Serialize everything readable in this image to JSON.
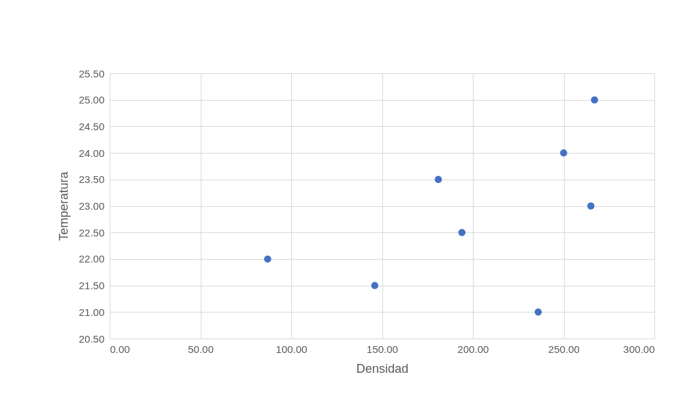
{
  "chart_data": {
    "type": "scatter",
    "xlabel": "Densidad",
    "ylabel": "Temperatura",
    "x": [
      267,
      250,
      181,
      265,
      194,
      87,
      146,
      236
    ],
    "series": [
      {
        "color": "#4472c4",
        "values": [
          25,
          24,
          23.5,
          23,
          22.5,
          22,
          21.5,
          21
        ]
      }
    ],
    "xlim": [
      0,
      300
    ],
    "xticks": [
      {
        "value": 0,
        "label": "0.00"
      },
      {
        "value": 50,
        "label": "50.00"
      },
      {
        "value": 100,
        "label": "100.00"
      },
      {
        "value": 150,
        "label": "150.00"
      },
      {
        "value": 200,
        "label": "200.00"
      },
      {
        "value": 250,
        "label": "250.00"
      },
      {
        "value": 300,
        "label": "300.00"
      }
    ],
    "ylim": [
      20.5,
      25.5
    ],
    "yticks": [
      {
        "value": 20.5,
        "label": "20.50"
      },
      {
        "value": 21,
        "label": "21.00"
      },
      {
        "value": 21.5,
        "label": "21.50"
      },
      {
        "value": 22,
        "label": "22.00"
      },
      {
        "value": 22.5,
        "label": "22.50"
      },
      {
        "value": 23,
        "label": "23.00"
      },
      {
        "value": 23.5,
        "label": "23.50"
      },
      {
        "value": 24,
        "label": "24.00"
      },
      {
        "value": 24.5,
        "label": "24.50"
      },
      {
        "value": 25,
        "label": "25.00"
      },
      {
        "value": 25.5,
        "label": "25.50"
      }
    ],
    "grid": true,
    "marker": "circle"
  }
}
